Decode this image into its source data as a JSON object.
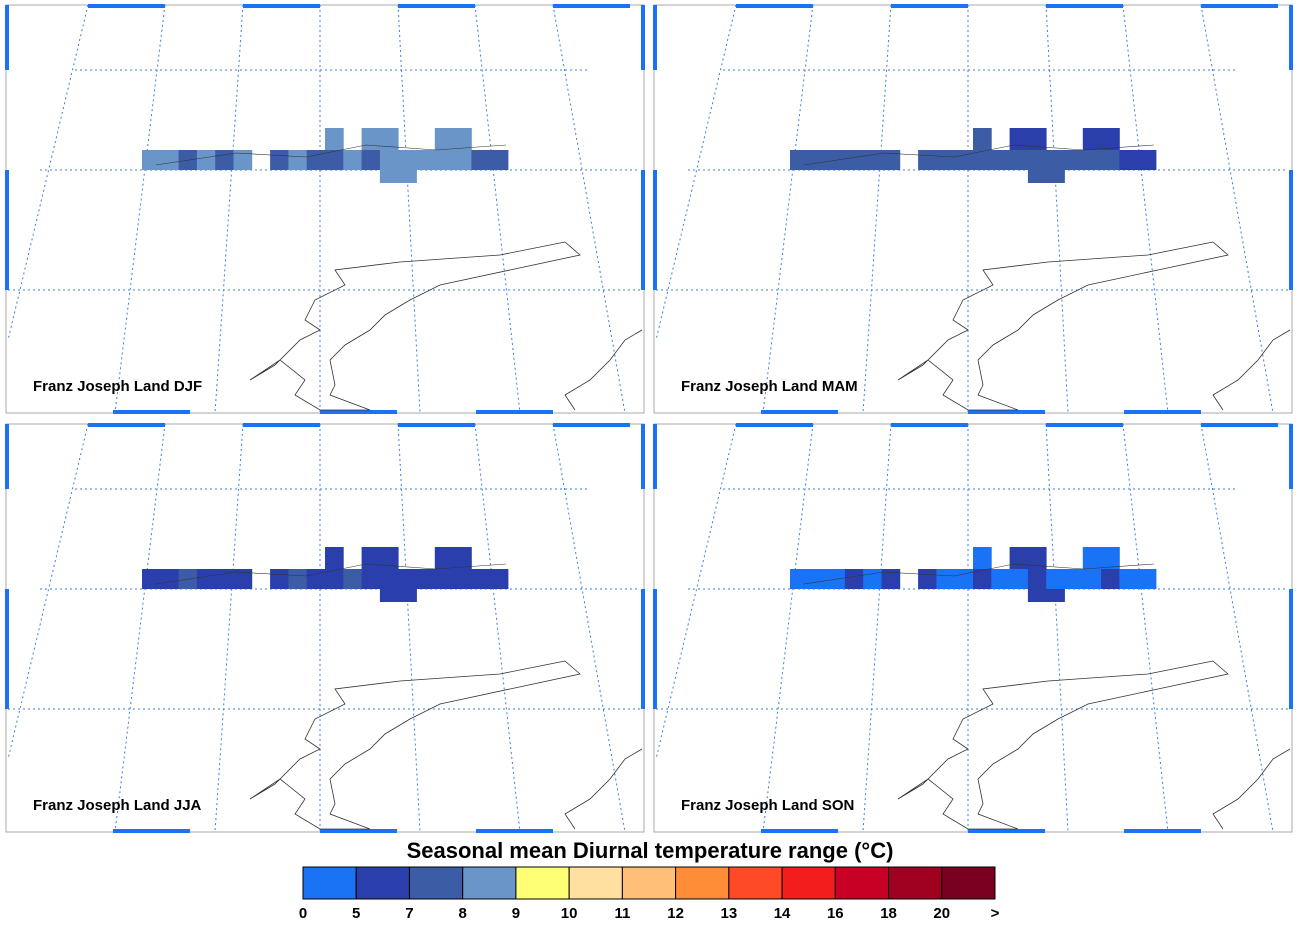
{
  "panels": [
    {
      "label": "Franz Joseph Land DJF",
      "cells": [
        [
          null,
          null,
          null,
          null,
          null,
          null,
          null,
          null,
          null,
          null,
          8.5,
          null,
          8.5,
          8.5,
          null,
          null,
          8.5,
          8.5,
          null,
          null
        ],
        [
          8.5,
          8.5,
          7.5,
          8.5,
          7.5,
          8.5,
          null,
          7.5,
          8.5,
          7.5,
          7.5,
          8.5,
          7.5,
          8.5,
          8.5,
          8.5,
          8.5,
          8.5,
          7.5,
          7.5
        ],
        [
          null,
          null,
          null,
          null,
          null,
          null,
          null,
          null,
          null,
          null,
          null,
          null,
          null,
          8.5,
          8.5,
          null,
          null,
          null,
          null,
          null
        ]
      ]
    },
    {
      "label": "Franz Joseph Land MAM",
      "cells": [
        [
          null,
          null,
          null,
          null,
          null,
          null,
          null,
          null,
          null,
          null,
          7.5,
          null,
          6,
          6,
          null,
          null,
          6,
          6,
          null,
          null
        ],
        [
          7.5,
          7.5,
          7.5,
          7.5,
          7.5,
          7.5,
          null,
          7.5,
          7.5,
          7.5,
          7.5,
          7.5,
          7.5,
          7.5,
          7.5,
          7.5,
          7.5,
          7.5,
          6,
          6
        ],
        [
          null,
          null,
          null,
          null,
          null,
          null,
          null,
          null,
          null,
          null,
          null,
          null,
          null,
          7.5,
          7.5,
          null,
          null,
          null,
          null,
          null
        ]
      ]
    },
    {
      "label": "Franz Joseph Land JJA",
      "cells": [
        [
          null,
          null,
          null,
          null,
          null,
          null,
          null,
          null,
          null,
          null,
          6,
          null,
          6,
          6,
          null,
          null,
          6,
          6,
          null,
          null
        ],
        [
          6,
          6,
          7.5,
          6,
          6,
          6,
          null,
          6,
          7.5,
          6,
          6,
          7.5,
          6,
          6,
          6,
          6,
          6,
          6,
          6,
          6
        ],
        [
          null,
          null,
          null,
          null,
          null,
          null,
          null,
          null,
          null,
          null,
          null,
          null,
          null,
          6,
          6,
          null,
          null,
          null,
          null,
          null
        ]
      ]
    },
    {
      "label": "Franz Joseph Land SON",
      "cells": [
        [
          null,
          null,
          null,
          null,
          null,
          null,
          null,
          null,
          null,
          null,
          4,
          null,
          6,
          6,
          null,
          null,
          4,
          4,
          null,
          null
        ],
        [
          4,
          4,
          4,
          6,
          4,
          6,
          null,
          6,
          4,
          4,
          6,
          4,
          4,
          6,
          4,
          4,
          4,
          6,
          4,
          4
        ],
        [
          null,
          null,
          null,
          null,
          null,
          null,
          null,
          null,
          null,
          null,
          null,
          null,
          null,
          6,
          6,
          null,
          null,
          null,
          null,
          null
        ]
      ]
    }
  ],
  "colorbar": {
    "title": "Seasonal mean Diurnal temperature range (°C)",
    "ticks": [
      0,
      5,
      7,
      8,
      9,
      10,
      11,
      12,
      13,
      14,
      16,
      18,
      20
    ],
    "overflow_label": ">",
    "colors": [
      "#1a72f5",
      "#2a3fab",
      "#3d5ca6",
      "#6995c8",
      "#ffff75",
      "#ffe0a0",
      "#ffbf78",
      "#ff8c36",
      "#ff4a28",
      "#f41d1d",
      "#c80025",
      "#a00020",
      "#7a0020"
    ]
  }
}
